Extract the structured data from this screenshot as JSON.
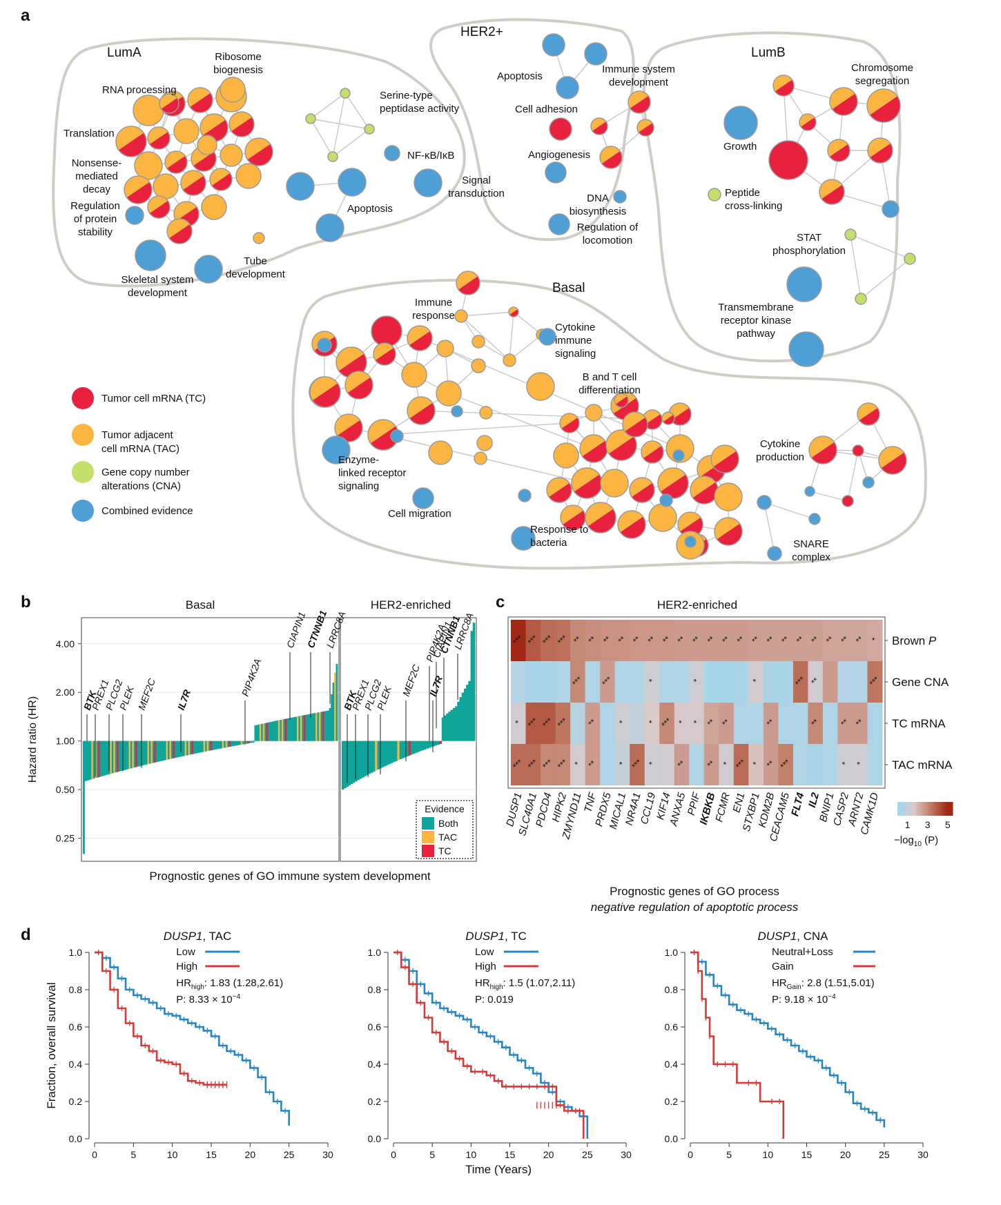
{
  "panel_letters": {
    "a": "a",
    "b": "b",
    "c": "c",
    "d": "d"
  },
  "colors": {
    "tc": "#e8213d",
    "tac": "#fbb540",
    "cna": "#c5e06a",
    "combined": "#4d9fd6",
    "both": "#10a59b",
    "hull": "#cfcdc6",
    "edge": "#c8c8c8",
    "low": "#2486c6",
    "high": "#d53a37"
  },
  "panel_a": {
    "clusters": {
      "luma": "LumA",
      "her2": "HER2+",
      "lumb": "LumB",
      "basal": "Basal"
    },
    "labels": {
      "luma_ribosome": [
        "Ribosome",
        "biogenesis"
      ],
      "luma_rna": [
        "RNA processing"
      ],
      "luma_translation": [
        "Translation"
      ],
      "luma_nmd": [
        "Nonsense-",
        "mediated",
        "decay"
      ],
      "luma_protein": [
        "Regulation",
        "of protein",
        "stability"
      ],
      "luma_skeletal": [
        "Skeletal system",
        "development"
      ],
      "luma_tube": [
        "Tube",
        "development"
      ],
      "luma_serine": [
        "Serine-type",
        "peptidase activity"
      ],
      "luma_nfkb": [
        "NF-κB/IκB"
      ],
      "luma_signal": [
        "Signal",
        "transduction"
      ],
      "luma_apoptosis": [
        "Apoptosis"
      ],
      "her2_apoptosis": [
        "Apoptosis"
      ],
      "her2_immune": [
        "Immune system",
        "development"
      ],
      "her2_adhesion": [
        "Cell adhesion"
      ],
      "her2_angio": [
        "Angiogenesis"
      ],
      "her2_dna": [
        "DNA",
        "biosynthesis"
      ],
      "her2_locomotion": [
        "Regulation of",
        "locomotion"
      ],
      "lumb_chromosome": [
        "Chromosome",
        "segregation"
      ],
      "lumb_growth": [
        "Growth"
      ],
      "lumb_peptide": [
        "Peptide",
        "cross-linking"
      ],
      "lumb_stat": [
        "STAT",
        "phosphorylation"
      ],
      "lumb_tmr": [
        "Transmembrane",
        "receptor kinase",
        "pathway"
      ],
      "basal_immune_resp": [
        "Immune",
        "response"
      ],
      "basal_cytokine_sig": [
        "Cytokine",
        "immune",
        "signaling"
      ],
      "basal_bt": [
        "B and T cell",
        "differentiation"
      ],
      "basal_enzyme": [
        "Enzyme-",
        "linked receptor",
        "signaling"
      ],
      "basal_migration": [
        "Cell migration"
      ],
      "basal_bacteria": [
        "Response to",
        "bacteria"
      ],
      "basal_cytokine_prod": [
        "Cytokine",
        "production"
      ],
      "basal_snare": [
        "SNARE",
        "complex"
      ]
    },
    "legend": [
      {
        "key": "tc",
        "lines": [
          "Tumor cell mRNA (TC)"
        ]
      },
      {
        "key": "tac",
        "lines": [
          "Tumor adjacent",
          "cell mRNA (TAC)"
        ]
      },
      {
        "key": "cna",
        "lines": [
          "Gene copy number",
          "alterations (CNA)"
        ]
      },
      {
        "key": "combined",
        "lines": [
          "Combined evidence"
        ]
      }
    ]
  },
  "panel_b": {
    "titles": {
      "basal": "Basal",
      "her2": "HER2-enriched"
    },
    "y_axis_label": "Hazard ratio (HR)",
    "y_ticks": [
      {
        "value": 0.25,
        "label": "0.25"
      },
      {
        "value": 0.5,
        "label": "0.50"
      },
      {
        "value": 1.0,
        "label": "1.00"
      },
      {
        "value": 2.0,
        "label": "2.00"
      },
      {
        "value": 4.0,
        "label": "4.00"
      }
    ],
    "x_label": "Prognostic genes of GO immune system development",
    "basal_genes": [
      {
        "name": "BTK",
        "bold": true
      },
      {
        "name": "PREX1",
        "bold": false
      },
      {
        "name": "PLCG2",
        "bold": false
      },
      {
        "name": "PLEK",
        "bold": false
      },
      {
        "name": "MEF2C",
        "bold": false
      },
      {
        "name": "IL7R",
        "bold": true
      },
      {
        "name": "PIP4K2A",
        "bold": false
      },
      {
        "name": "CIAPIN1",
        "bold": false
      },
      {
        "name": "CTNNB1",
        "bold": true
      },
      {
        "name": "LRRC8A",
        "bold": false
      }
    ],
    "her2_genes": [
      {
        "name": "BTK",
        "bold": true
      },
      {
        "name": "PREX1",
        "bold": false
      },
      {
        "name": "PLCG2",
        "bold": false
      },
      {
        "name": "PLEK",
        "bold": false
      },
      {
        "name": "MEF2C",
        "bold": false
      },
      {
        "name": "IL7R",
        "bold": true
      },
      {
        "name": "PIP4K2A",
        "bold": false
      },
      {
        "name": "CIAPIN1",
        "bold": false
      },
      {
        "name": "CTNNB1",
        "bold": true
      },
      {
        "name": "LRRC8A",
        "bold": false
      }
    ],
    "legend": {
      "title": "Evidence",
      "items": [
        {
          "key": "both",
          "label": "Both"
        },
        {
          "key": "tac",
          "label": "TAC"
        },
        {
          "key": "tc",
          "label": "TC"
        }
      ]
    }
  },
  "panel_c": {
    "title": "HER2-enriched",
    "rows": [
      {
        "label": "Brown ",
        "italic_suffix": "P"
      },
      {
        "label": "Gene CNA",
        "italic_suffix": ""
      },
      {
        "label": "TC mRNA",
        "italic_suffix": ""
      },
      {
        "label": "TAC mRNA",
        "italic_suffix": ""
      }
    ],
    "genes": [
      {
        "name": "DUSP1",
        "bold": false
      },
      {
        "name": "SLC40A1",
        "bold": false
      },
      {
        "name": "PDCD4",
        "bold": false
      },
      {
        "name": "HIPK2",
        "bold": false
      },
      {
        "name": "ZMYND11",
        "bold": false
      },
      {
        "name": "TNF",
        "bold": false
      },
      {
        "name": "PRDX5",
        "bold": false
      },
      {
        "name": "MICAL1",
        "bold": false
      },
      {
        "name": "NR4A1",
        "bold": false
      },
      {
        "name": "CCL19",
        "bold": false
      },
      {
        "name": "KIF14",
        "bold": false
      },
      {
        "name": "ANXA5",
        "bold": false
      },
      {
        "name": "PPIF",
        "bold": false
      },
      {
        "name": "IKBKB",
        "bold": true
      },
      {
        "name": "FCMR",
        "bold": false
      },
      {
        "name": "EN1",
        "bold": false
      },
      {
        "name": "STXBP1",
        "bold": false
      },
      {
        "name": "KDM2B",
        "bold": false
      },
      {
        "name": "CEACAM5",
        "bold": false
      },
      {
        "name": "FLT4",
        "bold": true
      },
      {
        "name": "IL2",
        "bold": true
      },
      {
        "name": "BNIP1",
        "bold": false
      },
      {
        "name": "CASP2",
        "bold": false
      },
      {
        "name": "ARNT2",
        "bold": false
      },
      {
        "name": "CAMK1D",
        "bold": false
      }
    ],
    "values": [
      [
        5.0,
        4.0,
        3.6,
        3.5,
        3.0,
        2.9,
        2.8,
        2.8,
        2.7,
        2.7,
        2.7,
        2.6,
        2.6,
        2.6,
        2.6,
        2.6,
        2.5,
        2.5,
        2.5,
        2.5,
        2.5,
        2.4,
        2.4,
        2.4,
        2.3
      ],
      [
        0.5,
        0.3,
        0.3,
        0.4,
        3.0,
        0.4,
        2.6,
        0.4,
        0.4,
        1.2,
        0.4,
        0.4,
        1.2,
        0.2,
        0.2,
        0.3,
        1.4,
        0.3,
        0.3,
        3.6,
        1.3,
        2.6,
        0.5,
        0.5,
        3.4
      ],
      [
        1.3,
        4.0,
        4.0,
        3.4,
        0.6,
        2.6,
        0.4,
        1.2,
        0.9,
        1.6,
        3.0,
        1.5,
        1.5,
        2.4,
        2.6,
        0.4,
        0.4,
        2.6,
        0.4,
        0.4,
        3.0,
        0.4,
        2.6,
        2.6,
        0.4
      ],
      [
        3.6,
        3.6,
        3.0,
        3.0,
        1.4,
        2.6,
        0.4,
        1.0,
        3.6,
        1.2,
        1.3,
        2.6,
        0.4,
        2.6,
        1.3,
        3.6,
        1.8,
        2.6,
        3.2,
        0.4,
        0.3,
        0.4,
        1.2,
        1.2,
        0.4
      ]
    ],
    "stars": [
      [
        "***",
        "***",
        "***",
        "***",
        "**",
        "**",
        "**",
        "**",
        "**",
        "**",
        "**",
        "**",
        "**",
        "**",
        "**",
        "**",
        "**",
        "**",
        "**",
        "**",
        "**",
        "**",
        "**",
        "**",
        "*"
      ],
      [
        "",
        "",
        "",
        "",
        "***",
        "",
        "***",
        "",
        "",
        "*",
        "",
        "",
        "*",
        "",
        "",
        "",
        "*",
        "",
        "",
        "***",
        "**",
        "",
        "",
        "",
        "***"
      ],
      [
        "*",
        "***",
        "***",
        "***",
        "",
        "**",
        "",
        "*",
        "",
        "*",
        "***",
        "*",
        "*",
        "**",
        "**",
        "",
        "",
        "**",
        "",
        "",
        "**",
        "",
        "**",
        "**",
        ""
      ],
      [
        "***",
        "***",
        "***",
        "***",
        "*",
        "**",
        "",
        "*",
        "***",
        "*",
        "",
        "**",
        "",
        "**",
        "*",
        "***",
        "*",
        "**",
        "***",
        "",
        "",
        "",
        "*",
        "*",
        ""
      ]
    ],
    "colorbar": {
      "ticks": [
        "1",
        "3",
        "5"
      ],
      "tick_values": [
        1,
        3,
        5
      ],
      "min": 0,
      "max": 5.5,
      "label": "−log",
      "label_sub": "10",
      "label_end": " (P)"
    },
    "x_label": "Prognostic genes of GO process",
    "x_label_2": "negative regulation of apoptotic process"
  },
  "panel_d": {
    "y_axis_label": "Fraction, overall survival",
    "x_axis_label": "Time (Years)",
    "x_ticks": [
      0,
      5,
      10,
      15,
      20,
      25,
      30
    ],
    "y_ticks": [
      "0.0",
      "0.2",
      "0.4",
      "0.6",
      "0.8",
      "1.0"
    ],
    "plots": [
      {
        "gene": "DUSP1",
        "suffix": ", TAC",
        "legend": [
          "Low",
          "High"
        ],
        "hr_prefix": "HR",
        "hr_sub": "high",
        "hr_value": ": 1.83 (1.28,2.61)",
        "p_text": "P: 8.33 × 10",
        "p_exp": "−4",
        "low": [
          [
            0,
            1.0
          ],
          [
            1,
            0.97
          ],
          [
            2,
            0.92
          ],
          [
            3,
            0.86
          ],
          [
            4,
            0.8
          ],
          [
            5,
            0.77
          ],
          [
            6,
            0.75
          ],
          [
            7,
            0.73
          ],
          [
            8,
            0.7
          ],
          [
            9,
            0.67
          ],
          [
            10,
            0.66
          ],
          [
            11,
            0.64
          ],
          [
            12,
            0.62
          ],
          [
            13,
            0.6
          ],
          [
            14,
            0.58
          ],
          [
            15,
            0.55
          ],
          [
            16,
            0.5
          ],
          [
            17,
            0.47
          ],
          [
            18,
            0.45
          ],
          [
            19,
            0.42
          ],
          [
            20,
            0.38
          ],
          [
            21,
            0.33
          ],
          [
            22,
            0.25
          ],
          [
            23,
            0.2
          ],
          [
            24,
            0.15
          ],
          [
            25,
            0.07
          ]
        ],
        "high": [
          [
            0,
            1.0
          ],
          [
            1,
            0.9
          ],
          [
            2,
            0.8
          ],
          [
            3,
            0.7
          ],
          [
            4,
            0.62
          ],
          [
            5,
            0.55
          ],
          [
            6,
            0.5
          ],
          [
            7,
            0.47
          ],
          [
            8,
            0.42
          ],
          [
            9,
            0.41
          ],
          [
            10,
            0.4
          ],
          [
            11,
            0.35
          ],
          [
            12,
            0.31
          ],
          [
            13,
            0.3
          ],
          [
            14,
            0.29
          ],
          [
            15,
            0.29
          ],
          [
            16,
            0.29
          ],
          [
            17,
            0.29
          ]
        ],
        "high_censor_end": 17
      },
      {
        "gene": "DUSP1",
        "suffix": ", TC",
        "legend": [
          "Low",
          "High"
        ],
        "hr_prefix": "HR",
        "hr_sub": "high",
        "hr_value": ": 1.5 (1.07,2.11)",
        "p_text": "P: 0.019",
        "p_exp": "",
        "low": [
          [
            0,
            1.0
          ],
          [
            1,
            0.96
          ],
          [
            2,
            0.9
          ],
          [
            3,
            0.83
          ],
          [
            4,
            0.78
          ],
          [
            5,
            0.73
          ],
          [
            6,
            0.7
          ],
          [
            7,
            0.68
          ],
          [
            8,
            0.66
          ],
          [
            9,
            0.64
          ],
          [
            10,
            0.6
          ],
          [
            11,
            0.57
          ],
          [
            12,
            0.55
          ],
          [
            13,
            0.52
          ],
          [
            14,
            0.49
          ],
          [
            15,
            0.45
          ],
          [
            16,
            0.42
          ],
          [
            17,
            0.38
          ],
          [
            18,
            0.35
          ],
          [
            19,
            0.3
          ],
          [
            20,
            0.25
          ],
          [
            21,
            0.2
          ],
          [
            22,
            0.17
          ],
          [
            23,
            0.15
          ],
          [
            24,
            0.12
          ],
          [
            25,
            0.0
          ]
        ],
        "high": [
          [
            0,
            1.0
          ],
          [
            1,
            0.92
          ],
          [
            2,
            0.83
          ],
          [
            3,
            0.73
          ],
          [
            4,
            0.65
          ],
          [
            5,
            0.57
          ],
          [
            6,
            0.52
          ],
          [
            7,
            0.47
          ],
          [
            8,
            0.43
          ],
          [
            9,
            0.39
          ],
          [
            10,
            0.36
          ],
          [
            11,
            0.36
          ],
          [
            12,
            0.34
          ],
          [
            13,
            0.31
          ],
          [
            14,
            0.28
          ],
          [
            15,
            0.28
          ],
          [
            16,
            0.28
          ],
          [
            17,
            0.28
          ],
          [
            18,
            0.28
          ],
          [
            19,
            0.28
          ],
          [
            20,
            0.28
          ],
          [
            21,
            0.18
          ],
          [
            22,
            0.15
          ],
          [
            23,
            0.15
          ],
          [
            24,
            0.15
          ],
          [
            24.5,
            0.0
          ]
        ],
        "high_censor_end": 21
      },
      {
        "gene": "DUSP1",
        "suffix": ", CNA",
        "legend": [
          "Neutral+Loss",
          "Gain"
        ],
        "hr_prefix": "HR",
        "hr_sub": "Gain",
        "hr_value": ": 2.8 (1.51,5.01)",
        "p_text": "P: 9.18 × 10",
        "p_exp": "−4",
        "low": [
          [
            0,
            1.0
          ],
          [
            1,
            0.95
          ],
          [
            2,
            0.88
          ],
          [
            3,
            0.82
          ],
          [
            4,
            0.77
          ],
          [
            5,
            0.72
          ],
          [
            6,
            0.69
          ],
          [
            7,
            0.67
          ],
          [
            8,
            0.64
          ],
          [
            9,
            0.62
          ],
          [
            10,
            0.59
          ],
          [
            11,
            0.56
          ],
          [
            12,
            0.53
          ],
          [
            13,
            0.5
          ],
          [
            14,
            0.47
          ],
          [
            15,
            0.44
          ],
          [
            16,
            0.42
          ],
          [
            17,
            0.38
          ],
          [
            18,
            0.34
          ],
          [
            19,
            0.3
          ],
          [
            20,
            0.25
          ],
          [
            21,
            0.19
          ],
          [
            22,
            0.16
          ],
          [
            23,
            0.14
          ],
          [
            24,
            0.1
          ],
          [
            25,
            0.06
          ]
        ],
        "high": [
          [
            0,
            1.0
          ],
          [
            1,
            0.9
          ],
          [
            1.5,
            0.75
          ],
          [
            2,
            0.65
          ],
          [
            2.5,
            0.55
          ],
          [
            3,
            0.4
          ],
          [
            4,
            0.4
          ],
          [
            5,
            0.4
          ],
          [
            6,
            0.3
          ],
          [
            8,
            0.3
          ],
          [
            9,
            0.2
          ],
          [
            11,
            0.2
          ],
          [
            12,
            0.0
          ]
        ],
        "high_censor_end": 0
      }
    ]
  }
}
